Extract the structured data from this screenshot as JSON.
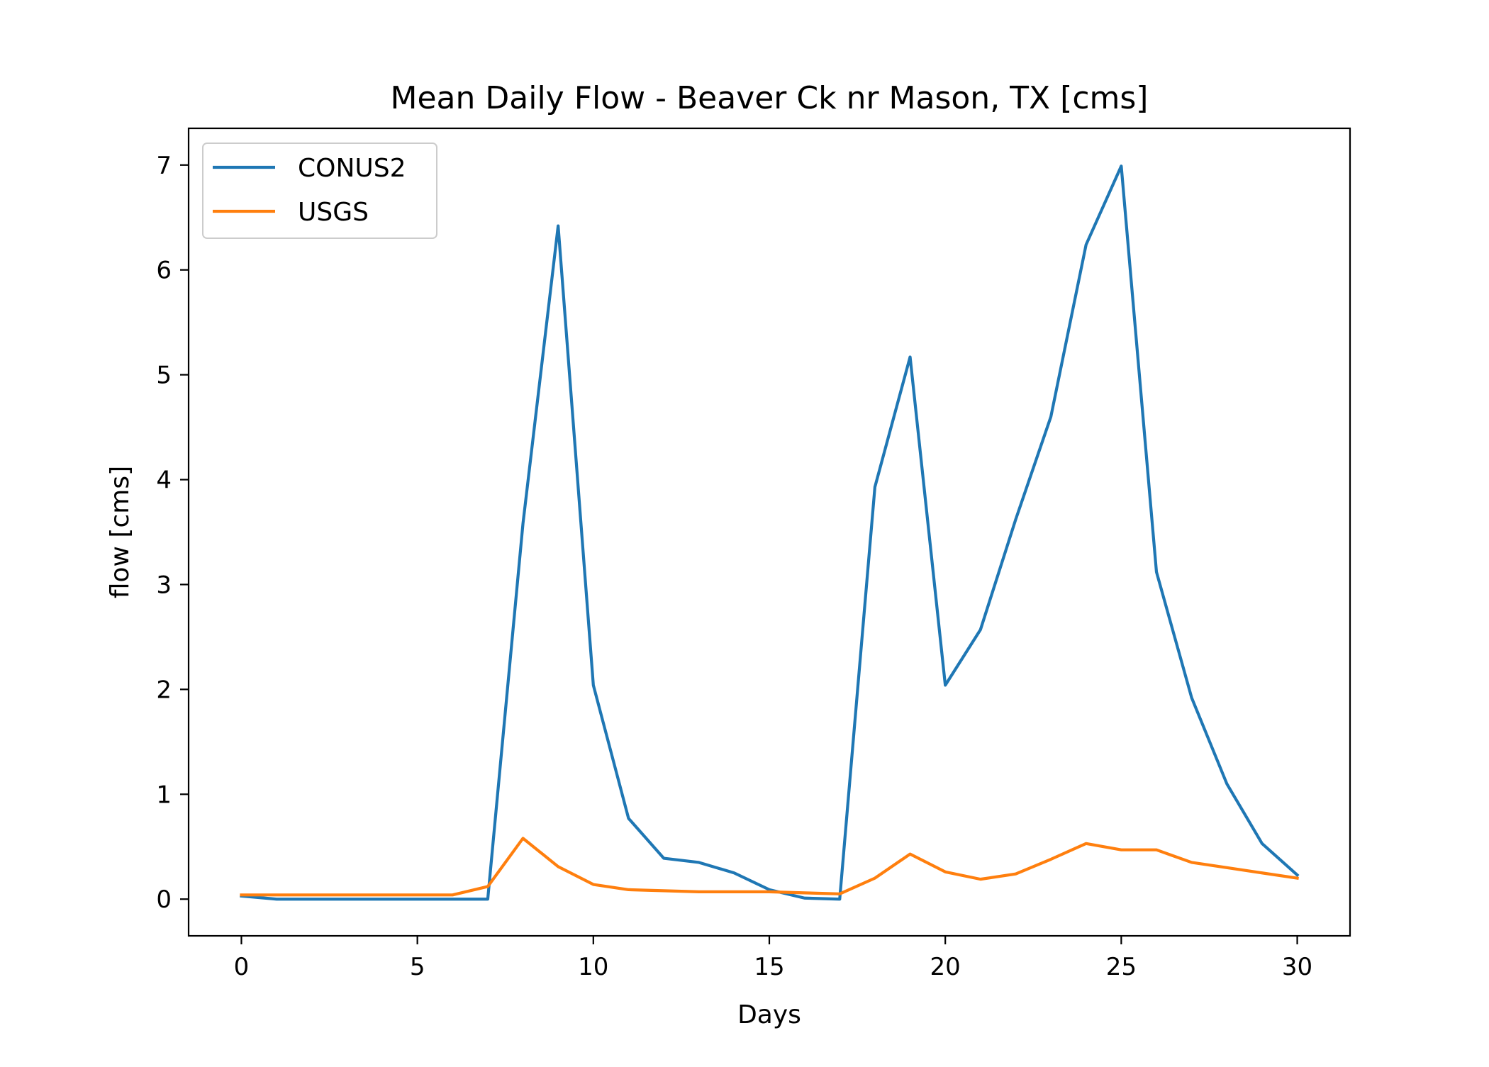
{
  "chart_data": {
    "type": "line",
    "title": "Mean Daily Flow - Beaver Ck nr Mason, TX [cms]",
    "xlabel": "Days",
    "ylabel": "flow [cms]",
    "xlim": [
      -1.5,
      31.5
    ],
    "ylim": [
      -0.35,
      7.35
    ],
    "xticks": [
      0,
      5,
      10,
      15,
      20,
      25,
      30
    ],
    "yticks": [
      0,
      1,
      2,
      3,
      4,
      5,
      6,
      7
    ],
    "grid": false,
    "legend_position": "upper-left",
    "x": [
      0,
      1,
      2,
      3,
      4,
      5,
      6,
      7,
      8,
      9,
      10,
      11,
      12,
      13,
      14,
      15,
      16,
      17,
      18,
      19,
      20,
      21,
      22,
      23,
      24,
      25,
      26,
      27,
      28,
      29,
      30
    ],
    "series": [
      {
        "name": "CONUS2",
        "color": "#1f77b4",
        "values": [
          0.03,
          0.0,
          0.0,
          0.0,
          0.0,
          0.0,
          0.0,
          0.0,
          3.58,
          6.42,
          2.04,
          0.77,
          0.39,
          0.35,
          0.25,
          0.09,
          0.01,
          0.0,
          3.93,
          5.17,
          2.04,
          2.57,
          3.62,
          4.6,
          6.24,
          6.99,
          3.12,
          1.92,
          1.1,
          0.53,
          0.23
        ]
      },
      {
        "name": "USGS",
        "color": "#ff7f0e",
        "values": [
          0.04,
          0.04,
          0.04,
          0.04,
          0.04,
          0.04,
          0.04,
          0.12,
          0.58,
          0.31,
          0.14,
          0.09,
          0.08,
          0.07,
          0.07,
          0.07,
          0.06,
          0.05,
          0.2,
          0.43,
          0.26,
          0.19,
          0.24,
          0.38,
          0.53,
          0.47,
          0.47,
          0.35,
          0.3,
          0.25,
          0.2
        ]
      }
    ]
  }
}
